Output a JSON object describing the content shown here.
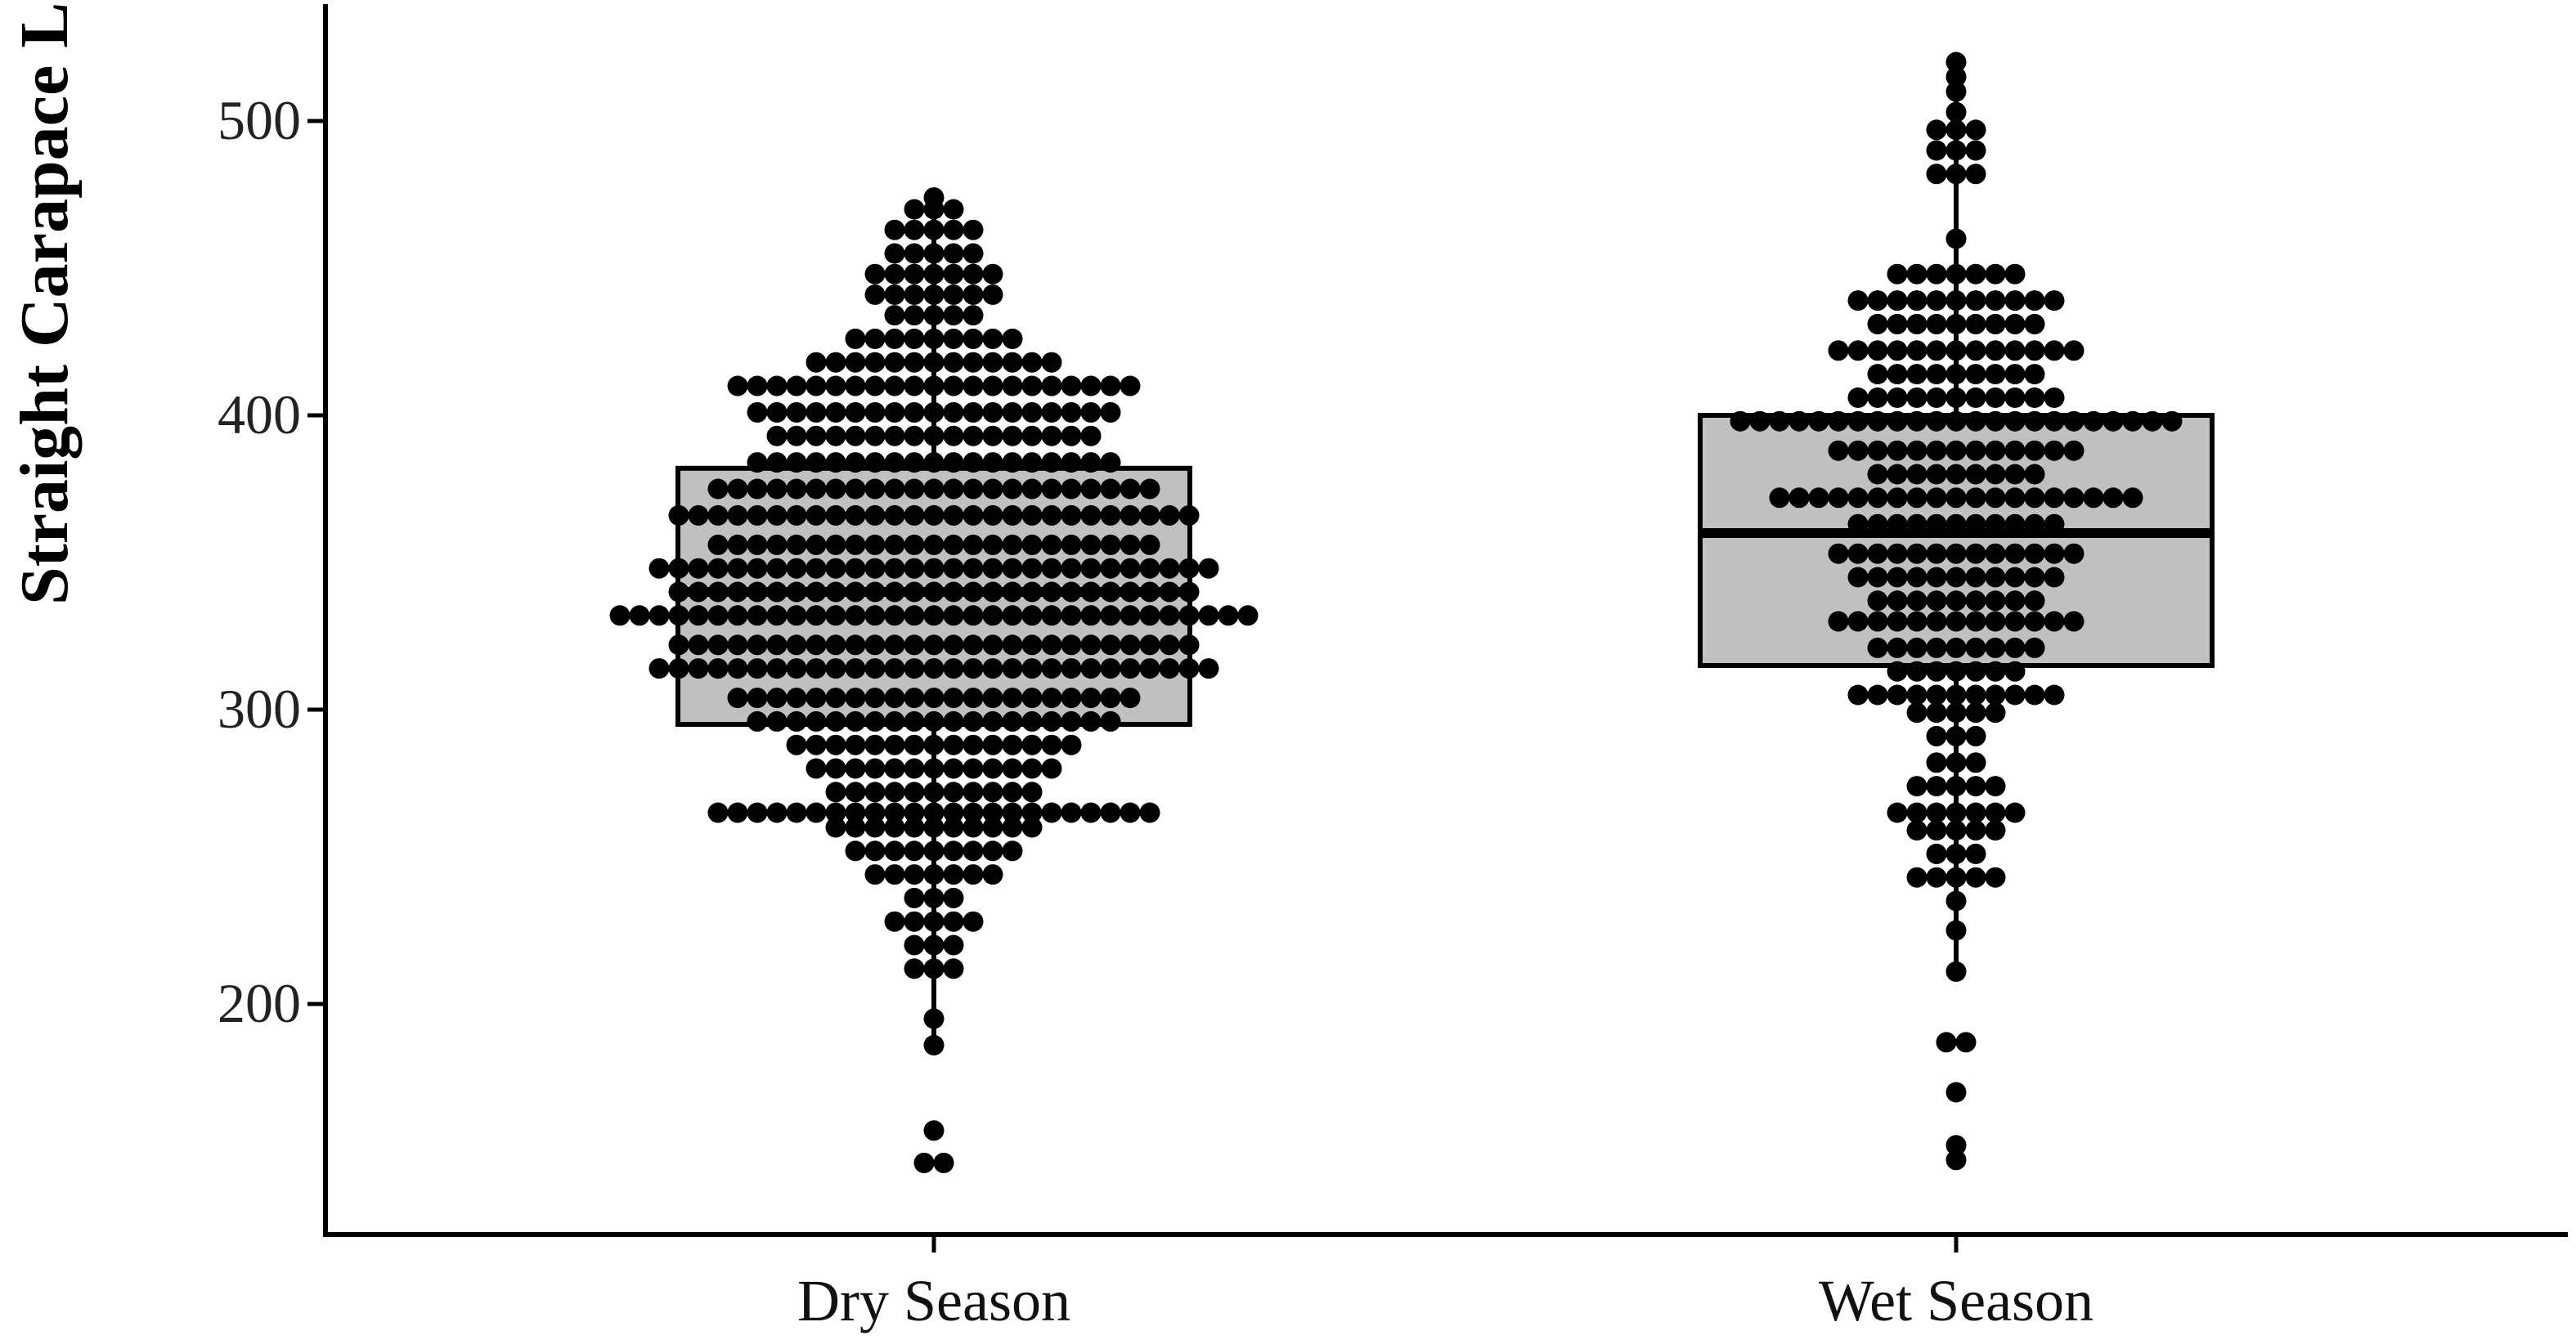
{
  "chart_data": {
    "type": "boxplot",
    "title": "",
    "xlabel": "",
    "ylabel": "Straight Carapace Length (mm)",
    "ylim": [
      125,
      540
    ],
    "yticks": [
      200,
      300,
      400,
      500
    ],
    "categories": [
      "Dry Season",
      "Wet Season"
    ],
    "grid": false,
    "box_fill": "#c0c0c0",
    "point_color": "#000000",
    "boxes": [
      {
        "name": "Dry Season",
        "whisker_low": 185,
        "q1": 295,
        "median": 340,
        "q3": 382,
        "whisker_high": 475
      },
      {
        "name": "Wet Season",
        "whisker_low": 210,
        "q1": 315,
        "median": 360,
        "q3": 400,
        "whisker_high": 520
      }
    ],
    "dots": [
      {
        "name": "Dry Season",
        "bins": [
          [
            146,
            2
          ],
          [
            157,
            1
          ],
          [
            186,
            1
          ],
          [
            195,
            1
          ],
          [
            212,
            3
          ],
          [
            220,
            3
          ],
          [
            228,
            5
          ],
          [
            236,
            3
          ],
          [
            244,
            7
          ],
          [
            252,
            9
          ],
          [
            260,
            11
          ],
          [
            265,
            23
          ],
          [
            272,
            11
          ],
          [
            280,
            13
          ],
          [
            288,
            15
          ],
          [
            296,
            19
          ],
          [
            304,
            21
          ],
          [
            314,
            29
          ],
          [
            322,
            27
          ],
          [
            332,
            33
          ],
          [
            340,
            27
          ],
          [
            348,
            29
          ],
          [
            356,
            23
          ],
          [
            366,
            27
          ],
          [
            375,
            23
          ],
          [
            384,
            19
          ],
          [
            393,
            17
          ],
          [
            401,
            19
          ],
          [
            410,
            21
          ],
          [
            418,
            13
          ],
          [
            426,
            9
          ],
          [
            434,
            5
          ],
          [
            441,
            7
          ],
          [
            448,
            7
          ],
          [
            455,
            5
          ],
          [
            463,
            5
          ],
          [
            470,
            3
          ],
          [
            474,
            1
          ]
        ]
      },
      {
        "name": "Wet Season",
        "bins": [
          [
            147,
            1
          ],
          [
            152,
            1
          ],
          [
            170,
            1
          ],
          [
            187,
            2
          ],
          [
            211,
            1
          ],
          [
            225,
            1
          ],
          [
            235,
            1
          ],
          [
            243,
            5
          ],
          [
            251,
            3
          ],
          [
            259,
            5
          ],
          [
            265,
            7
          ],
          [
            274,
            5
          ],
          [
            282,
            3
          ],
          [
            291,
            3
          ],
          [
            299,
            5
          ],
          [
            305,
            11
          ],
          [
            313,
            7
          ],
          [
            321,
            9
          ],
          [
            330,
            13
          ],
          [
            337,
            9
          ],
          [
            345,
            11
          ],
          [
            353,
            13
          ],
          [
            363,
            11
          ],
          [
            372,
            19
          ],
          [
            380,
            9
          ],
          [
            388,
            13
          ],
          [
            398,
            23
          ],
          [
            406,
            11
          ],
          [
            414,
            9
          ],
          [
            422,
            13
          ],
          [
            431,
            9
          ],
          [
            439,
            11
          ],
          [
            448,
            7
          ],
          [
            460,
            1
          ],
          [
            482,
            3
          ],
          [
            490,
            3
          ],
          [
            497,
            3
          ],
          [
            503,
            1
          ],
          [
            510,
            1
          ],
          [
            515,
            1
          ],
          [
            520,
            1
          ]
        ]
      }
    ]
  }
}
